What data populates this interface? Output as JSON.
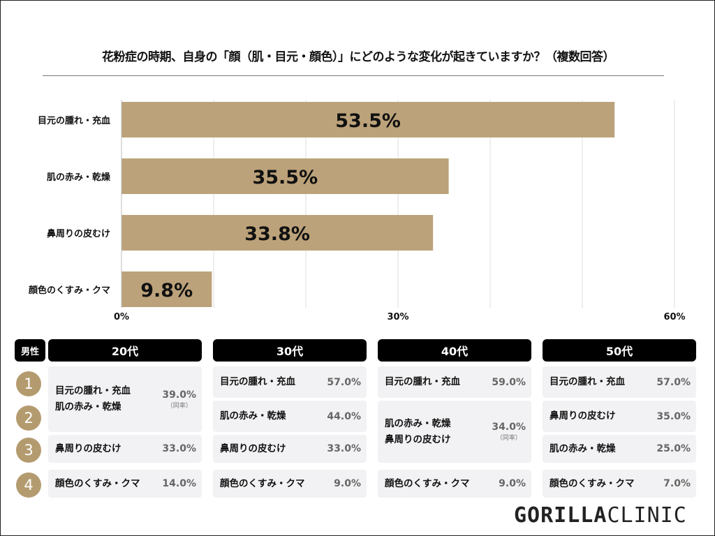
{
  "chart_data": {
    "type": "bar",
    "orientation": "horizontal",
    "title": "花粉症の時期、自身の「顔（肌・目元・顔色）」にどのような変化が起きていますか？（複数回答）",
    "categories": [
      "目元の腫れ・充血",
      "肌の赤み・乾燥",
      "鼻周りの皮むけ",
      "顔色のくすみ・クマ"
    ],
    "values": [
      53.5,
      35.5,
      33.8,
      9.8
    ],
    "value_labels": [
      "53.5%",
      "35.5%",
      "33.8%",
      "9.8%"
    ],
    "xlim": [
      0,
      60
    ],
    "xticks": [
      "0%",
      "30%",
      "60%"
    ],
    "grid": true,
    "bar_color": "#bca27a"
  },
  "table": {
    "gender_label": "男性",
    "ranks": [
      "1",
      "2",
      "3",
      "4"
    ],
    "groups": [
      {
        "label": "20代",
        "rows": [
          {
            "items": [
              "目元の腫れ・充血",
              "肌の赤み・乾燥"
            ],
            "pct": "39.0%",
            "note": "（同率）",
            "span": 2
          },
          {
            "items": [
              "鼻周りの皮むけ"
            ],
            "pct": "33.0%"
          },
          {
            "items": [
              "顔色のくすみ・クマ"
            ],
            "pct": "14.0%"
          }
        ]
      },
      {
        "label": "30代",
        "rows": [
          {
            "items": [
              "目元の腫れ・充血"
            ],
            "pct": "57.0%"
          },
          {
            "items": [
              "肌の赤み・乾燥"
            ],
            "pct": "44.0%"
          },
          {
            "items": [
              "鼻周りの皮むけ"
            ],
            "pct": "33.0%"
          },
          {
            "items": [
              "顔色のくすみ・クマ"
            ],
            "pct": "9.0%"
          }
        ]
      },
      {
        "label": "40代",
        "rows": [
          {
            "items": [
              "目元の腫れ・充血"
            ],
            "pct": "59.0%"
          },
          {
            "items": [
              "肌の赤み・乾燥",
              "鼻周りの皮むけ"
            ],
            "pct": "34.0%",
            "note": "（同率）",
            "span": 2
          },
          {
            "items": [
              "顔色のくすみ・クマ"
            ],
            "pct": "9.0%"
          }
        ]
      },
      {
        "label": "50代",
        "rows": [
          {
            "items": [
              "目元の腫れ・充血"
            ],
            "pct": "57.0%"
          },
          {
            "items": [
              "鼻周りの皮むけ"
            ],
            "pct": "35.0%"
          },
          {
            "items": [
              "肌の赤み・乾燥"
            ],
            "pct": "25.0%"
          },
          {
            "items": [
              "顔色のくすみ・クマ"
            ],
            "pct": "7.0%"
          }
        ]
      }
    ]
  },
  "logo": {
    "bold": "GORILLA",
    "light": "CLINIC"
  }
}
